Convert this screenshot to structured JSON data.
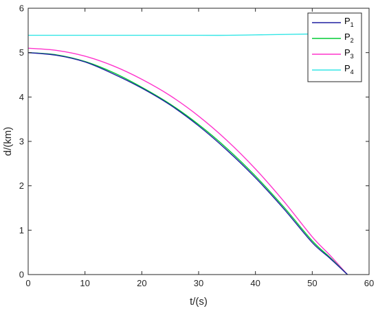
{
  "chart_data": {
    "type": "line",
    "xlabel": "t/(s)",
    "ylabel": "d/(km)",
    "xlim": [
      0,
      60
    ],
    "ylim": [
      0,
      6
    ],
    "xticks": [
      "0",
      "10",
      "20",
      "30",
      "40",
      "50",
      "60"
    ],
    "yticks": [
      "0",
      "1",
      "2",
      "3",
      "4",
      "5",
      "6"
    ],
    "grid": false,
    "legend_position": "top-right",
    "series": [
      {
        "name": "P1",
        "label_main": "P",
        "label_sub": "1",
        "color": "#1f1fa0",
        "x": [
          0,
          5,
          10,
          15,
          20,
          25,
          30,
          35,
          40,
          45,
          50,
          53,
          56.2
        ],
        "y": [
          5.0,
          4.94,
          4.79,
          4.52,
          4.2,
          3.82,
          3.35,
          2.8,
          2.18,
          1.48,
          0.72,
          0.38,
          0.0
        ]
      },
      {
        "name": "P2",
        "label_main": "P",
        "label_sub": "2",
        "color": "#00cc33",
        "x": [
          0,
          5,
          10,
          15,
          20,
          25,
          30,
          35,
          40,
          45,
          50,
          53,
          56.2
        ],
        "y": [
          5.0,
          4.95,
          4.8,
          4.55,
          4.22,
          3.84,
          3.38,
          2.84,
          2.22,
          1.52,
          0.76,
          0.4,
          0.0
        ]
      },
      {
        "name": "P3",
        "label_main": "P",
        "label_sub": "3",
        "color": "#ff33cc",
        "x": [
          0,
          5,
          10,
          15,
          20,
          25,
          30,
          35,
          40,
          45,
          50,
          53,
          56.2
        ],
        "y": [
          5.1,
          5.05,
          4.92,
          4.7,
          4.4,
          4.03,
          3.57,
          3.02,
          2.38,
          1.65,
          0.85,
          0.45,
          0.0
        ]
      },
      {
        "name": "P4",
        "label_main": "P",
        "label_sub": "4",
        "color": "#33e6e6",
        "x": [
          0,
          10,
          20,
          30,
          35,
          40,
          45,
          50,
          56
        ],
        "y": [
          5.39,
          5.39,
          5.39,
          5.39,
          5.39,
          5.4,
          5.41,
          5.42,
          5.44
        ]
      }
    ]
  }
}
